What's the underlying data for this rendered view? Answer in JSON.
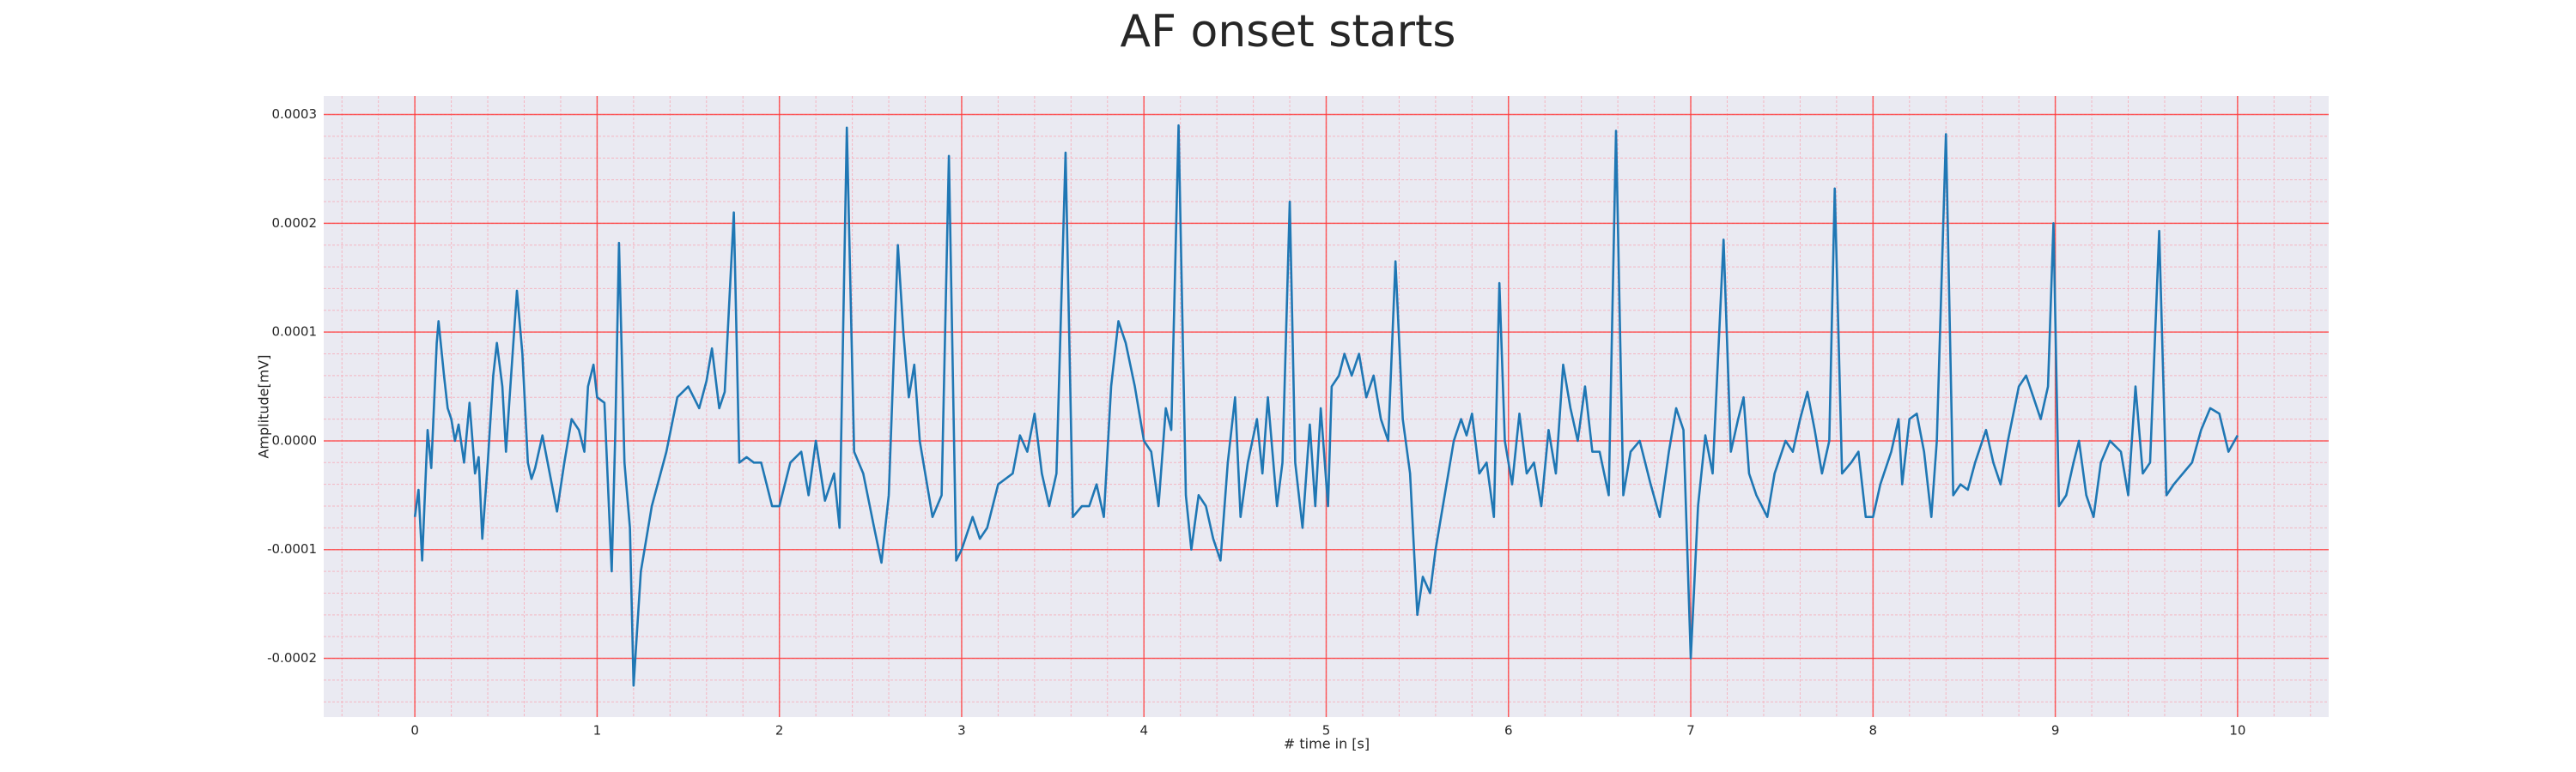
{
  "chart_data": {
    "type": "line",
    "title": "AF onset starts",
    "x_label": "# time in [s]",
    "y_label": "Amplitude[mV]",
    "xlim": [
      -0.5,
      10.5
    ],
    "ylim": [
      -0.000254,
      0.000317
    ],
    "xticks": [
      0,
      1,
      2,
      3,
      4,
      5,
      6,
      7,
      8,
      9,
      10
    ],
    "yticks": [
      {
        "value": -0.0002,
        "label": "-0.0002"
      },
      {
        "value": -0.0001,
        "label": "-0.0001"
      },
      {
        "value": 0,
        "label": "0.0000"
      },
      {
        "value": 0.0001,
        "label": "0.0001"
      },
      {
        "value": 0.0002,
        "label": "0.0002"
      },
      {
        "value": 0.0003,
        "label": "0.0003"
      }
    ],
    "grid": true,
    "grid_color": "#ff3b3b",
    "minor_grid_color": "#f4b6c2",
    "background": "#eaeaf2",
    "xminor_step": 0.2,
    "yminor_step": 2e-05,
    "series": [
      {
        "color": "#1f77b4",
        "x": [
          0,
          0.02,
          0.04,
          0.07,
          0.09,
          0.12,
          0.13,
          0.16,
          0.18,
          0.2,
          0.22,
          0.24,
          0.27,
          0.3,
          0.33,
          0.35,
          0.37,
          0.4,
          0.43,
          0.45,
          0.48,
          0.5,
          0.52,
          0.56,
          0.59,
          0.62,
          0.64,
          0.66,
          0.7,
          0.74,
          0.78,
          0.82,
          0.86,
          0.9,
          0.93,
          0.95,
          0.98,
          1.0,
          1.04,
          1.08,
          1.1,
          1.12,
          1.15,
          1.18,
          1.2,
          1.24,
          1.3,
          1.38,
          1.44,
          1.5,
          1.56,
          1.6,
          1.63,
          1.67,
          1.7,
          1.75,
          1.78,
          1.82,
          1.86,
          1.9,
          1.96,
          2.0,
          2.06,
          2.12,
          2.16,
          2.2,
          2.25,
          2.3,
          2.33,
          2.37,
          2.41,
          2.46,
          2.52,
          2.56,
          2.6,
          2.65,
          2.68,
          2.71,
          2.74,
          2.77,
          2.8,
          2.84,
          2.89,
          2.93,
          2.97,
          3.0,
          3.06,
          3.1,
          3.14,
          3.2,
          3.28,
          3.32,
          3.36,
          3.4,
          3.44,
          3.48,
          3.52,
          3.57,
          3.61,
          3.66,
          3.7,
          3.74,
          3.78,
          3.82,
          3.86,
          3.9,
          3.95,
          4.0,
          4.04,
          4.08,
          4.12,
          4.15,
          4.19,
          4.23,
          4.26,
          4.3,
          4.34,
          4.38,
          4.42,
          4.46,
          4.5,
          4.53,
          4.57,
          4.62,
          4.65,
          4.68,
          4.73,
          4.76,
          4.8,
          4.83,
          4.87,
          4.91,
          4.94,
          4.97,
          5.01,
          5.03,
          5.07,
          5.1,
          5.14,
          5.18,
          5.22,
          5.26,
          5.3,
          5.34,
          5.38,
          5.42,
          5.46,
          5.5,
          5.53,
          5.57,
          5.6,
          5.66,
          5.7,
          5.74,
          5.77,
          5.8,
          5.84,
          5.88,
          5.92,
          5.95,
          5.98,
          6.02,
          6.06,
          6.1,
          6.14,
          6.18,
          6.22,
          6.26,
          6.3,
          6.34,
          6.38,
          6.42,
          6.46,
          6.5,
          6.55,
          6.59,
          6.63,
          6.67,
          6.72,
          6.78,
          6.83,
          6.88,
          6.92,
          6.96,
          7.0,
          7.04,
          7.08,
          7.12,
          7.18,
          7.22,
          7.26,
          7.29,
          7.32,
          7.36,
          7.42,
          7.46,
          7.52,
          7.56,
          7.6,
          7.64,
          7.68,
          7.72,
          7.76,
          7.79,
          7.83,
          7.88,
          7.92,
          7.96,
          8.0,
          8.04,
          8.1,
          8.14,
          8.16,
          8.2,
          8.24,
          8.28,
          8.32,
          8.35,
          8.4,
          8.44,
          8.48,
          8.52,
          8.56,
          8.62,
          8.66,
          8.7,
          8.74,
          8.8,
          8.84,
          8.88,
          8.92,
          8.96,
          8.99,
          9.02,
          9.06,
          9.1,
          9.13,
          9.17,
          9.21,
          9.25,
          9.3,
          9.36,
          9.4,
          9.44,
          9.48,
          9.52,
          9.57,
          9.61,
          9.65,
          9.7,
          9.75,
          9.8,
          9.85,
          9.9,
          9.95,
          10.0
        ],
        "values": [
          -7e-05,
          -4.5e-05,
          -0.00011,
          1e-05,
          -2.5e-05,
          9e-05,
          0.00011,
          6e-05,
          3e-05,
          2e-05,
          0,
          1.5e-05,
          -2e-05,
          3.5e-05,
          -3e-05,
          -1.5e-05,
          -9e-05,
          -2e-05,
          6e-05,
          9e-05,
          5e-05,
          -1e-05,
          4e-05,
          0.000138,
          8e-05,
          -2e-05,
          -3.5e-05,
          -2.5e-05,
          5e-06,
          -3e-05,
          -6.5e-05,
          -2e-05,
          2e-05,
          1e-05,
          -1e-05,
          5e-05,
          7e-05,
          4e-05,
          3.5e-05,
          -0.00012,
          1e-05,
          0.000182,
          -2e-05,
          -8e-05,
          -0.000225,
          -0.00012,
          -6e-05,
          -1e-05,
          4e-05,
          5e-05,
          3e-05,
          5.5e-05,
          8.5e-05,
          3e-05,
          4.5e-05,
          0.00021,
          -2e-05,
          -1.5e-05,
          -2e-05,
          -2e-05,
          -6e-05,
          -6e-05,
          -2e-05,
          -1e-05,
          -5e-05,
          0,
          -5.5e-05,
          -3e-05,
          -8e-05,
          0.000288,
          -1e-05,
          -3e-05,
          -8e-05,
          -0.000112,
          -5e-05,
          0.00018,
          0.0001,
          4e-05,
          7e-05,
          0,
          -3e-05,
          -7e-05,
          -5e-05,
          0.000262,
          -0.00011,
          -0.0001,
          -7e-05,
          -9e-05,
          -8e-05,
          -4e-05,
          -3e-05,
          5e-06,
          -1e-05,
          2.5e-05,
          -3e-05,
          -6e-05,
          -3e-05,
          0.000265,
          -7e-05,
          -6e-05,
          -6e-05,
          -4e-05,
          -7e-05,
          5e-05,
          0.00011,
          9e-05,
          5e-05,
          0,
          -1e-05,
          -6e-05,
          3e-05,
          1e-05,
          0.00029,
          -5e-05,
          -0.0001,
          -5e-05,
          -6e-05,
          -9e-05,
          -0.00011,
          -2e-05,
          4e-05,
          -7e-05,
          -2e-05,
          2e-05,
          -3e-05,
          4e-05,
          -6e-05,
          -2e-05,
          0.00022,
          -2e-05,
          -8e-05,
          1.5e-05,
          -6e-05,
          3e-05,
          -6e-05,
          5e-05,
          6e-05,
          8e-05,
          6e-05,
          8e-05,
          4e-05,
          6e-05,
          2e-05,
          0,
          0.000165,
          2e-05,
          -3e-05,
          -0.00016,
          -0.000125,
          -0.00014,
          -0.0001,
          -4e-05,
          0,
          2e-05,
          5e-06,
          2.5e-05,
          -3e-05,
          -2e-05,
          -7e-05,
          0.000145,
          0,
          -4e-05,
          2.5e-05,
          -3e-05,
          -2e-05,
          -6e-05,
          1e-05,
          -3e-05,
          7e-05,
          3e-05,
          0,
          5e-05,
          -1e-05,
          -1e-05,
          -5e-05,
          0.000285,
          -5e-05,
          -1e-05,
          0,
          -4e-05,
          -7e-05,
          -1e-05,
          3e-05,
          1e-05,
          -0.0002,
          -6e-05,
          5e-06,
          -3e-05,
          0.000185,
          -1e-05,
          2e-05,
          4e-05,
          -3e-05,
          -5e-05,
          -7e-05,
          -3e-05,
          0,
          -1e-05,
          2e-05,
          4.5e-05,
          1e-05,
          -3e-05,
          0,
          0.000232,
          -3e-05,
          -2e-05,
          -1e-05,
          -7e-05,
          -7e-05,
          -4e-05,
          -1e-05,
          2e-05,
          -4e-05,
          2e-05,
          2.5e-05,
          -1e-05,
          -7e-05,
          0,
          0.000282,
          -5e-05,
          -4e-05,
          -4.5e-05,
          -2e-05,
          1e-05,
          -2e-05,
          -4e-05,
          0,
          5e-05,
          6e-05,
          4e-05,
          2e-05,
          5e-05,
          0.0002,
          -6e-05,
          -5e-05,
          -2e-05,
          0,
          -5e-05,
          -7e-05,
          -2e-05,
          0,
          -1e-05,
          -5e-05,
          5e-05,
          -3e-05,
          -2e-05,
          0.000193,
          -5e-05,
          -4e-05,
          -3e-05,
          -2e-05,
          1e-05,
          3e-05,
          2.5e-05,
          -1e-05,
          5e-06
        ]
      }
    ]
  }
}
